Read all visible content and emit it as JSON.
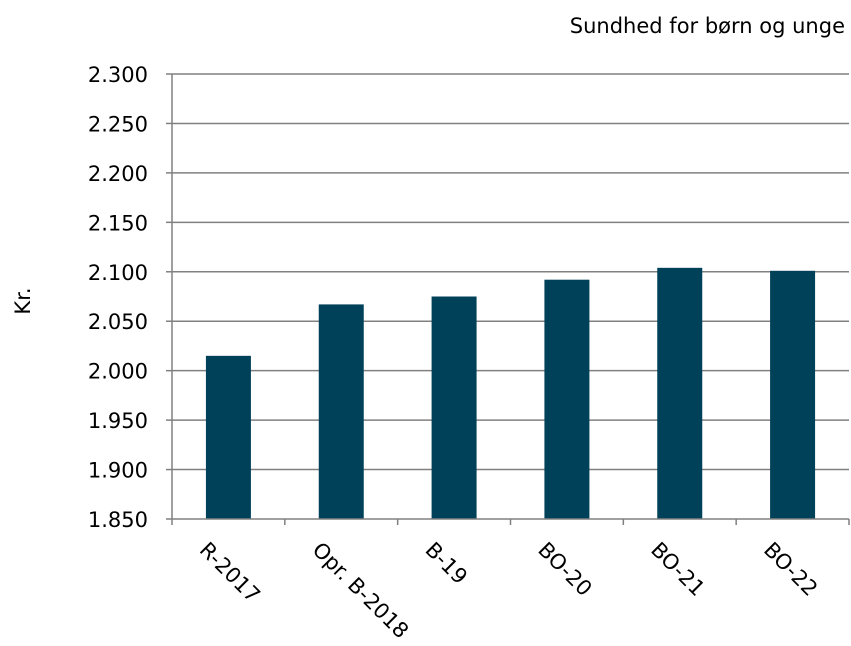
{
  "chart_data": {
    "type": "bar",
    "title": "Sundhed for børn og unge",
    "xlabel": "",
    "ylabel": "Kr.",
    "categories": [
      "R-2017",
      "Opr. B-2018",
      "B-19",
      "BO-20",
      "BO-21",
      "BO-22"
    ],
    "values": [
      2015,
      2067,
      2075,
      2092,
      2104,
      2101
    ],
    "ylim": [
      1850,
      2300
    ],
    "yticks": [
      1850,
      1900,
      1950,
      2000,
      2050,
      2100,
      2150,
      2200,
      2250,
      2300
    ],
    "ytick_labels": [
      "1.850",
      "1.900",
      "1.950",
      "2.000",
      "2.050",
      "2.100",
      "2.150",
      "2.200",
      "2.250",
      "2.300"
    ],
    "grid": true,
    "legend": "none",
    "bar_color": "#00415a",
    "grid_color": "#808080"
  }
}
